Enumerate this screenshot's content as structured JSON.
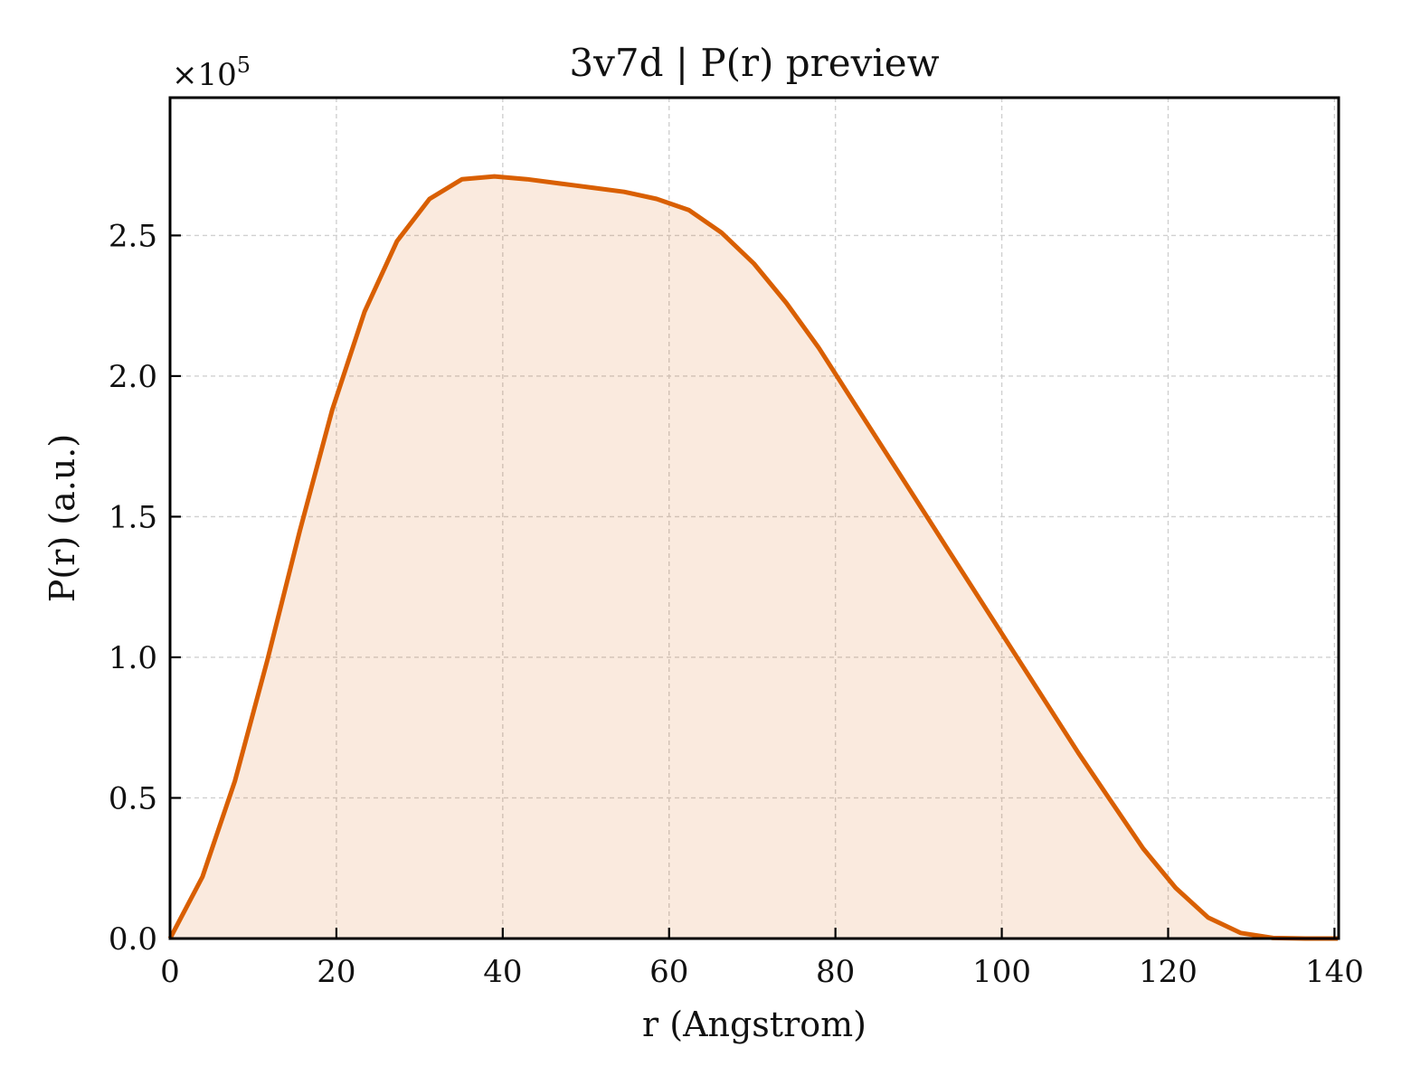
{
  "chart_data": {
    "type": "area",
    "title": "3v7d | P(r) preview",
    "xlabel": "r (Angstrom)",
    "ylabel": "P(r) (a.u.)",
    "y_multiplier": "×10",
    "y_multiplier_exp": "5",
    "xlim": [
      0,
      140.5
    ],
    "ylim": [
      0,
      2.99
    ],
    "grid": true,
    "xticks": [
      0,
      20,
      40,
      60,
      80,
      100,
      120,
      140
    ],
    "xtick_labels": [
      "0",
      "20",
      "40",
      "60",
      "80",
      "100",
      "120",
      "140"
    ],
    "yticks": [
      0,
      0.5,
      1.0,
      1.5,
      2.0,
      2.5
    ],
    "ytick_labels": [
      "0.0",
      "0.5",
      "1.0",
      "1.5",
      "2.0",
      "2.5"
    ],
    "series": [
      {
        "color": "#d95f02",
        "fill_color": "#d95f02",
        "fill_opacity": 0.13,
        "x": [
          0,
          3.9,
          7.8,
          11.7,
          15.6,
          19.5,
          23.4,
          27.3,
          31.2,
          35.1,
          39.0,
          42.9,
          46.8,
          50.7,
          54.6,
          58.5,
          62.4,
          66.3,
          70.2,
          74.1,
          78.0,
          81.9,
          85.8,
          89.7,
          93.6,
          97.5,
          101.4,
          105.3,
          109.2,
          113.1,
          117.0,
          120.9,
          124.8,
          128.7,
          132.6,
          136.5,
          140.4
        ],
        "y": [
          0.0,
          0.22,
          0.56,
          0.99,
          1.45,
          1.88,
          2.23,
          2.48,
          2.63,
          2.7,
          2.71,
          2.7,
          2.685,
          2.67,
          2.655,
          2.63,
          2.59,
          2.51,
          2.4,
          2.26,
          2.1,
          1.92,
          1.74,
          1.56,
          1.38,
          1.2,
          1.02,
          0.84,
          0.66,
          0.49,
          0.32,
          0.18,
          0.075,
          0.02,
          0.002,
          0.0,
          0.0
        ]
      }
    ]
  }
}
